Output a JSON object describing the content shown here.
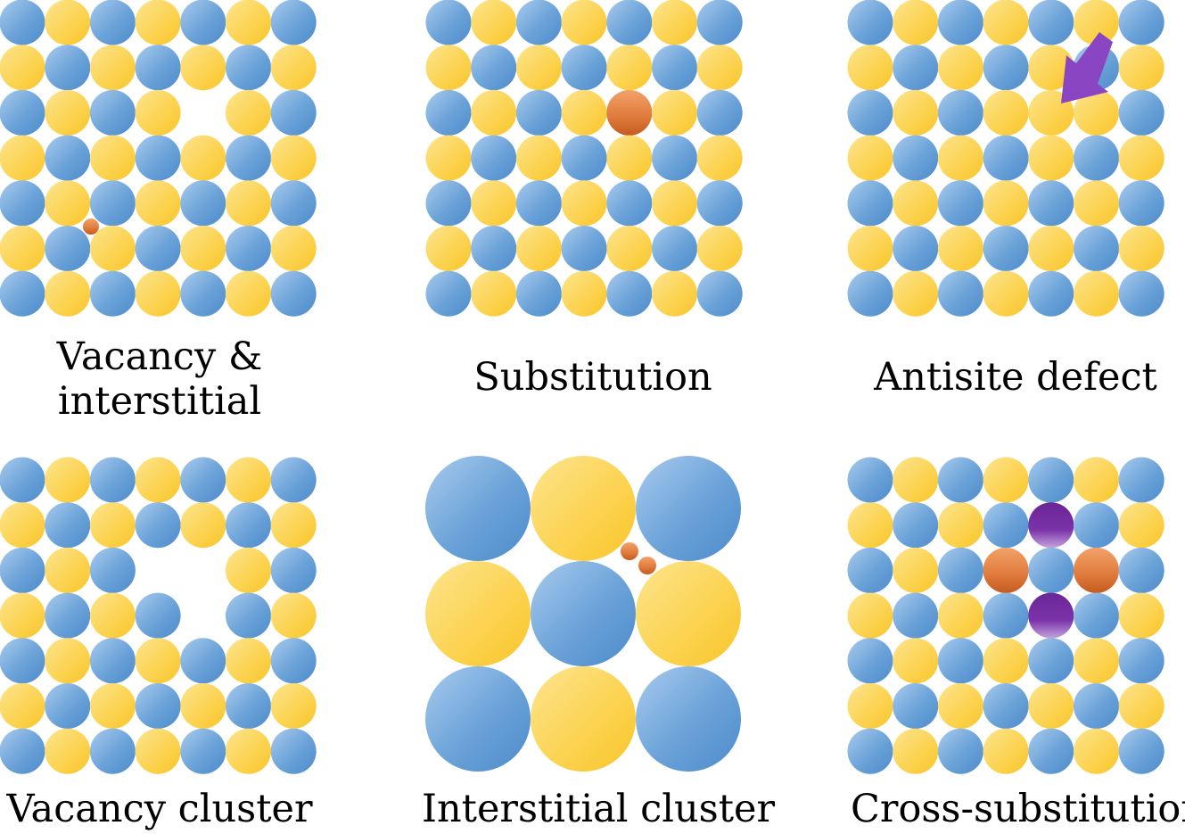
{
  "panels": [
    {
      "id": "vacancy-interstitial",
      "caption_lines": [
        "Vacancy &",
        "interstitial"
      ]
    },
    {
      "id": "substitution",
      "caption_lines": [
        "Substitution"
      ]
    },
    {
      "id": "antisite-defect",
      "caption_lines": [
        "Antisite defect"
      ]
    },
    {
      "id": "vacancy-cluster",
      "caption_lines": [
        "Vacancy cluster"
      ]
    },
    {
      "id": "interstitial-cluster",
      "caption_lines": [
        "Interstitial cluster"
      ]
    },
    {
      "id": "cross-substitution",
      "caption_lines": [
        "Cross-substitution"
      ]
    }
  ],
  "colors": {
    "atom_blue": "#6aa2d8",
    "atom_yellow": "#fcd24e",
    "dopant_orange": "#e07a3c",
    "dopant_purple": "#7a33a8",
    "arrow_purple": "#8a45c2"
  },
  "icons": [
    "arrow-icon"
  ]
}
